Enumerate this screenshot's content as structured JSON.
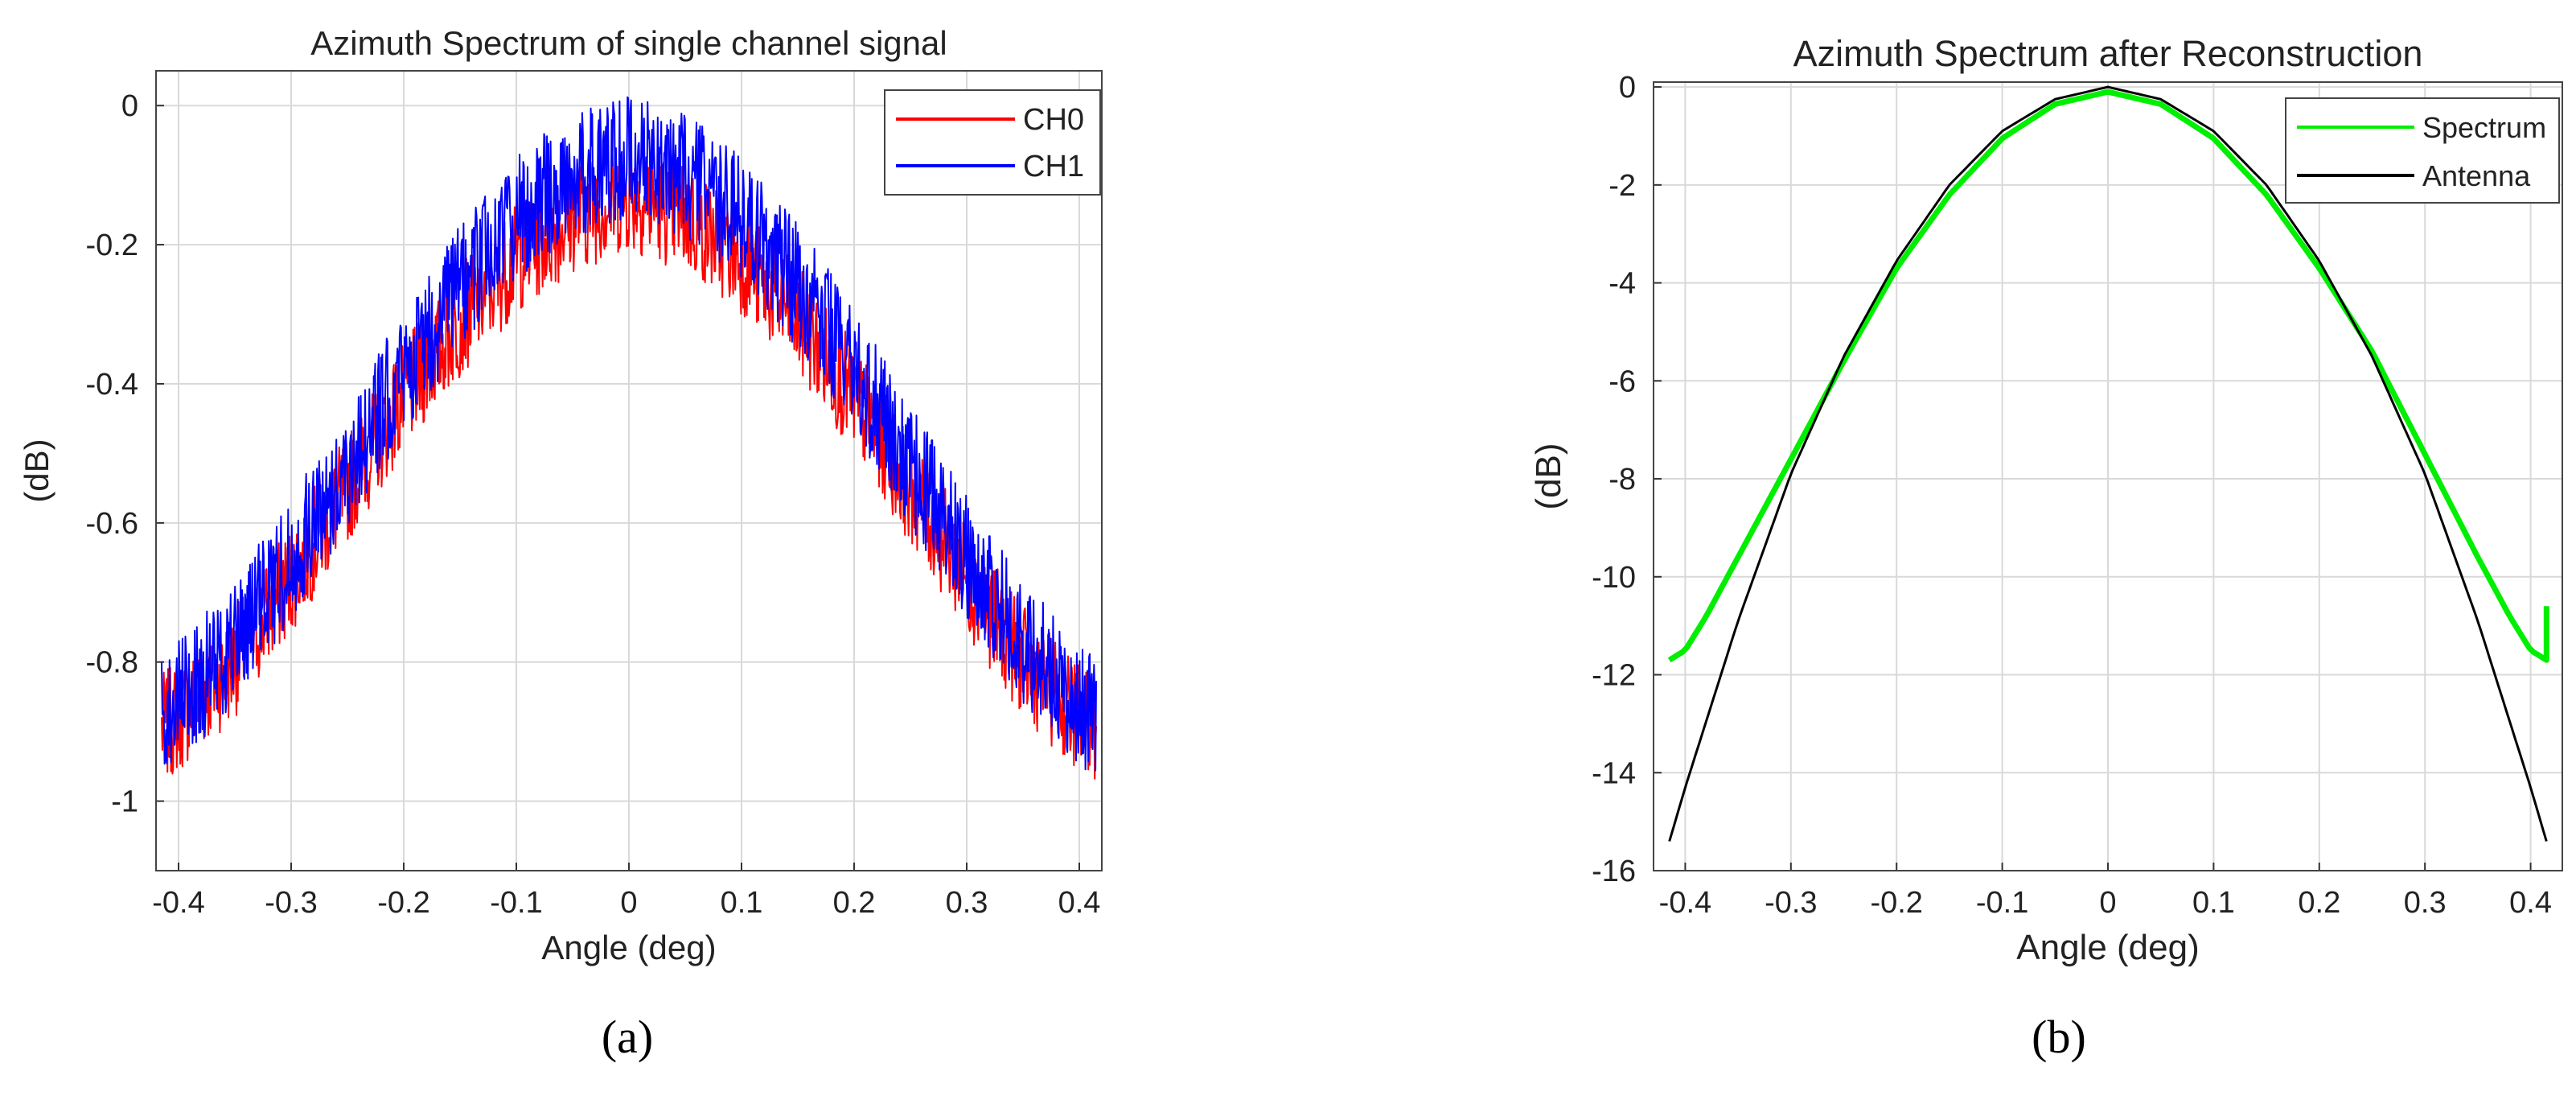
{
  "chart_data": [
    {
      "panel_label": "(a)",
      "type": "line",
      "title": "Azimuth Spectrum of single channel signal",
      "xlabel": "Angle (deg)",
      "ylabel": "(dB)",
      "xlim": [
        -0.42,
        0.42
      ],
      "ylim": [
        -1.1,
        0.05
      ],
      "xticks": [
        "-0.4",
        "-0.3",
        "-0.2",
        "-0.1",
        "0",
        "0.1",
        "0.2",
        "0.3",
        "0.4"
      ],
      "yticks": [
        "0",
        "-0.2",
        "-0.4",
        "-0.6",
        "-0.8",
        "-1"
      ],
      "grid": true,
      "legend_position": "top-right",
      "series": [
        {
          "name": "CH0",
          "color": "#ff0000",
          "x": [
            -0.42,
            -0.4,
            -0.35,
            -0.3,
            -0.25,
            -0.2,
            -0.15,
            -0.1,
            -0.05,
            0,
            0.05,
            0.1,
            0.15,
            0.2,
            0.25,
            0.3,
            0.35,
            0.4,
            0.42
          ],
          "y_center": [
            -0.9,
            -0.88,
            -0.8,
            -0.68,
            -0.55,
            -0.42,
            -0.31,
            -0.22,
            -0.16,
            -0.13,
            -0.16,
            -0.22,
            -0.31,
            -0.42,
            -0.55,
            -0.68,
            -0.8,
            -0.88,
            -0.9
          ],
          "noise_amplitude": 0.08
        },
        {
          "name": "CH1",
          "color": "#0000ff",
          "x": [
            -0.42,
            -0.4,
            -0.35,
            -0.3,
            -0.25,
            -0.2,
            -0.15,
            -0.1,
            -0.05,
            0,
            0.05,
            0.1,
            0.15,
            0.2,
            0.25,
            0.3,
            0.35,
            0.4,
            0.42
          ],
          "y_center": [
            -0.88,
            -0.86,
            -0.77,
            -0.65,
            -0.52,
            -0.38,
            -0.26,
            -0.16,
            -0.1,
            -0.07,
            -0.1,
            -0.16,
            -0.26,
            -0.38,
            -0.52,
            -0.65,
            -0.77,
            -0.86,
            -0.88
          ],
          "noise_amplitude": 0.09
        }
      ]
    },
    {
      "panel_label": "(b)",
      "type": "line",
      "title": "Azimuth Spectrum after Reconstruction",
      "xlabel": "Angle (deg)",
      "ylabel": "(dB)",
      "xlim": [
        -0.43,
        0.43
      ],
      "ylim": [
        -16,
        0.1
      ],
      "xticks": [
        "-0.4",
        "-0.3",
        "-0.2",
        "-0.1",
        "0",
        "0.1",
        "0.2",
        "0.3",
        "0.4"
      ],
      "yticks": [
        "0",
        "-2",
        "-4",
        "-6",
        "-8",
        "-10",
        "-12",
        "-14",
        "-16"
      ],
      "grid": true,
      "legend_position": "top-right",
      "series": [
        {
          "name": "Spectrum",
          "color": "#00ee00",
          "x": [
            -0.415,
            -0.4,
            -0.38,
            -0.35,
            -0.3,
            -0.25,
            -0.2,
            -0.15,
            -0.1,
            -0.05,
            0,
            0.05,
            0.1,
            0.15,
            0.2,
            0.25,
            0.3,
            0.35,
            0.38,
            0.4,
            0.415,
            0.415
          ],
          "y": [
            -11.7,
            -11.5,
            -10.8,
            -9.6,
            -7.6,
            -5.6,
            -3.7,
            -2.2,
            -1.05,
            -0.35,
            -0.1,
            -0.35,
            -1.05,
            -2.2,
            -3.7,
            -5.4,
            -7.5,
            -9.6,
            -10.8,
            -11.5,
            -11.7,
            -10.6
          ]
        },
        {
          "name": "Antenna",
          "color": "#000000",
          "x": [
            -0.415,
            -0.4,
            -0.35,
            -0.3,
            -0.25,
            -0.2,
            -0.15,
            -0.1,
            -0.05,
            0,
            0.05,
            0.1,
            0.15,
            0.2,
            0.25,
            0.3,
            0.35,
            0.4,
            0.415
          ],
          "y": [
            -15.4,
            -14.3,
            -10.9,
            -7.9,
            -5.5,
            -3.55,
            -2.0,
            -0.9,
            -0.25,
            0,
            -0.25,
            -0.9,
            -2.0,
            -3.55,
            -5.5,
            -7.9,
            -10.9,
            -14.3,
            -15.4
          ]
        }
      ]
    }
  ]
}
